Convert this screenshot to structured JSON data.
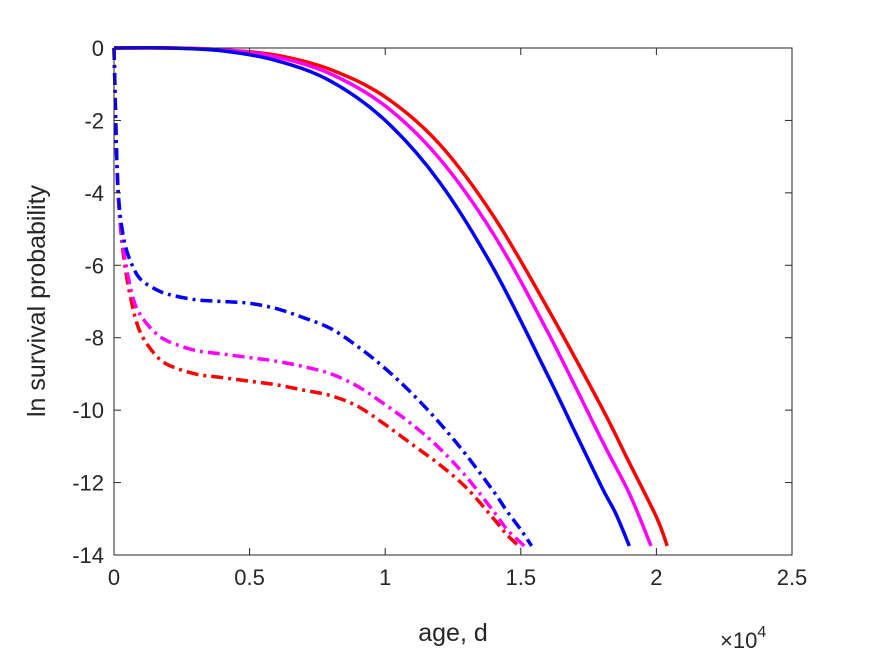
{
  "chart_data": {
    "type": "line",
    "xlabel": "age, d",
    "ylabel": "ln survival probability",
    "x_multiplier": {
      "base": "10",
      "exponent": "4"
    },
    "xlim": [
      0,
      25000
    ],
    "ylim": [
      -14,
      0
    ],
    "x_ticks": [
      0,
      5000,
      10000,
      15000,
      20000,
      25000
    ],
    "x_tick_labels": [
      "0",
      "0.5",
      "1",
      "1.5",
      "2",
      "2.5"
    ],
    "y_ticks": [
      0,
      -2,
      -4,
      -6,
      -8,
      -10,
      -12,
      -14
    ],
    "y_tick_labels": [
      "0",
      "-2",
      "-4",
      "-6",
      "-8",
      "-10",
      "-12",
      "-14"
    ],
    "grid": false,
    "series": [
      {
        "color": "#ff0000",
        "style": "solid",
        "x": [
          0,
          2000,
          4000,
          6000,
          8000,
          10000,
          12000,
          14000,
          16000,
          18000,
          19000,
          20000,
          20400
        ],
        "y": [
          0,
          0,
          -0.05,
          -0.2,
          -0.6,
          -1.35,
          -2.65,
          -4.65,
          -7.2,
          -9.95,
          -11.45,
          -12.95,
          -13.75
        ]
      },
      {
        "color": "#ff00ff",
        "style": "solid",
        "x": [
          0,
          2000,
          4000,
          6000,
          8000,
          10000,
          12000,
          14000,
          16000,
          18000,
          19000,
          19800
        ],
        "y": [
          0,
          0,
          -0.05,
          -0.25,
          -0.72,
          -1.6,
          -3.05,
          -5.15,
          -7.85,
          -10.85,
          -12.3,
          -13.75
        ]
      },
      {
        "color": "#0000ff",
        "style": "solid",
        "x": [
          0,
          2000,
          4000,
          6000,
          8000,
          10000,
          12000,
          14000,
          16000,
          17000,
          18000,
          18500,
          19000
        ],
        "y": [
          0,
          0,
          -0.08,
          -0.35,
          -0.92,
          -2.0,
          -3.7,
          -6.1,
          -9.05,
          -10.6,
          -12.15,
          -12.85,
          -13.75
        ]
      },
      {
        "color": "#ff0000",
        "style": "dashdot",
        "x": [
          0,
          100,
          200,
          400,
          700,
          1000,
          1500,
          2000,
          3000,
          4000,
          5000,
          6000,
          7000,
          8000,
          9000,
          10000,
          11000,
          12000,
          13000,
          14000,
          14500,
          15000
        ],
        "y": [
          0,
          -3.0,
          -4.6,
          -6.0,
          -7.2,
          -7.9,
          -8.45,
          -8.75,
          -9.0,
          -9.1,
          -9.2,
          -9.3,
          -9.45,
          -9.6,
          -9.9,
          -10.4,
          -10.95,
          -11.5,
          -12.15,
          -13.0,
          -13.45,
          -13.8
        ]
      },
      {
        "color": "#ff00ff",
        "style": "dashdot",
        "x": [
          0,
          100,
          200,
          400,
          700,
          1000,
          1500,
          2000,
          3000,
          4000,
          5000,
          6000,
          7000,
          8000,
          9000,
          10000,
          11000,
          12000,
          13000,
          14000,
          14500,
          15200
        ],
        "y": [
          0,
          -3.0,
          -4.5,
          -5.8,
          -6.9,
          -7.4,
          -7.85,
          -8.1,
          -8.35,
          -8.45,
          -8.55,
          -8.65,
          -8.8,
          -9.0,
          -9.35,
          -9.85,
          -10.4,
          -11.05,
          -11.85,
          -12.8,
          -13.3,
          -13.8
        ]
      },
      {
        "color": "#0000ff",
        "style": "dashdot",
        "x": [
          0,
          100,
          200,
          400,
          700,
          1000,
          1500,
          2000,
          3000,
          4000,
          5000,
          6000,
          7000,
          8000,
          9000,
          10000,
          11000,
          12000,
          13000,
          14000,
          14500,
          15000,
          15400
        ],
        "y": [
          0,
          -3.0,
          -4.4,
          -5.4,
          -6.05,
          -6.4,
          -6.65,
          -6.8,
          -6.95,
          -7.0,
          -7.05,
          -7.2,
          -7.45,
          -7.75,
          -8.25,
          -8.85,
          -9.55,
          -10.35,
          -11.25,
          -12.25,
          -12.8,
          -13.3,
          -13.75
        ]
      }
    ]
  }
}
